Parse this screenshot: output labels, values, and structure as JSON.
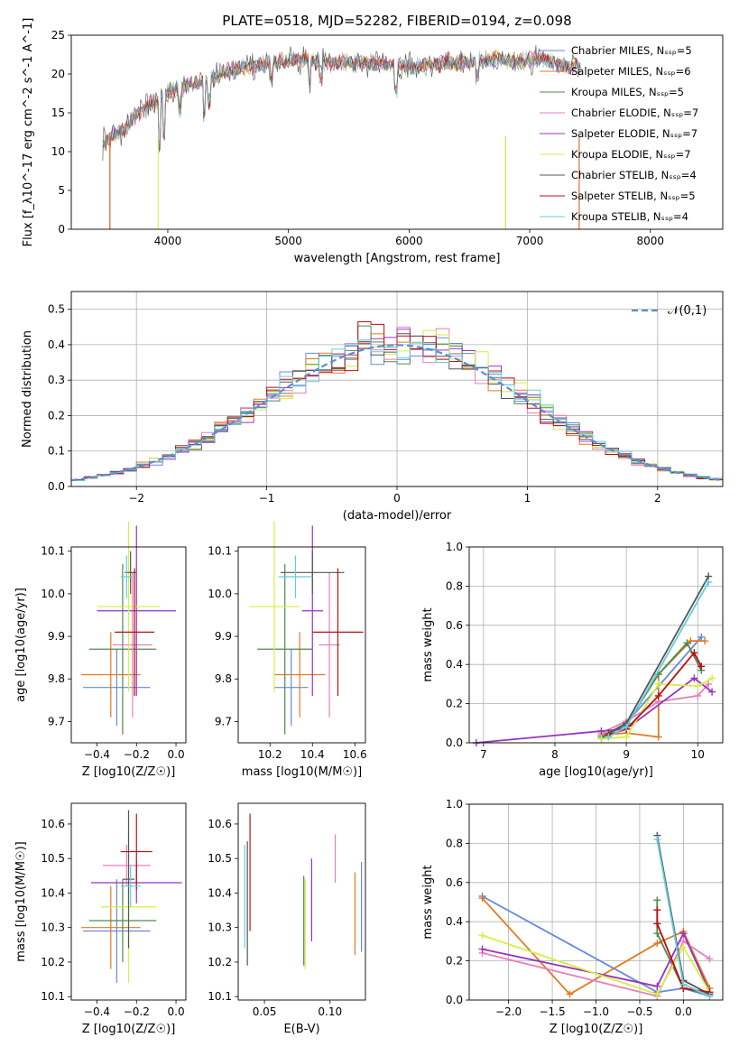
{
  "colors": {
    "blue": "#6688dd",
    "orange": "#e07b22",
    "green": "#4e8a50",
    "pink": "#e67fbf",
    "purple": "#9933bb",
    "yellow": "#d6ee44",
    "gray": "#555555",
    "red": "#bb1111",
    "cyan": "#66ccdd"
  },
  "chart_data": [
    {
      "type": "line",
      "title": "PLATE=0518, MJD=52282, FIBERID=0194, z=0.098",
      "xlabel": "wavelength [Angstrom, rest frame]",
      "ylabel": "Flux [f_λ10^-17 erg cm^-2 s^-1 A^-1]",
      "xlim": [
        3200,
        8600
      ],
      "ylim": [
        0,
        25
      ],
      "xticks": [
        4000,
        5000,
        6000,
        7000,
        8000
      ],
      "yticks": [
        0,
        5,
        10,
        15,
        20,
        25
      ],
      "series": [
        {
          "name": "Chabrier MILES, N_SSP=5"
        },
        {
          "name": "Salpeter MILES, N_SSP=6"
        },
        {
          "name": "Kroupa MILES, N_SSP=5"
        },
        {
          "name": "Chabrier ELODIE, N_SSP=7"
        },
        {
          "name": "Salpeter ELODIE, N_SSP=7"
        },
        {
          "name": "Kroupa ELODIE, N_SSP=7"
        },
        {
          "name": "Chabrier STELIB, N_SSP=4"
        },
        {
          "name": "Salpeter STELIB, N_SSP=5"
        },
        {
          "name": "Kroupa STELIB, N_SSP=4"
        }
      ],
      "legend": "right",
      "spectrum_envelope": {
        "x": [
          3450,
          3550,
          3650,
          3750,
          3850,
          3950,
          4050,
          4150,
          4300,
          4500,
          4700,
          4900,
          5100,
          5300,
          5500,
          5700,
          5900,
          6100,
          6300,
          6500,
          6700,
          6900,
          7100,
          7300,
          7420
        ],
        "y": [
          11,
          12,
          13,
          15,
          16,
          17,
          18,
          18.5,
          19,
          20.5,
          21,
          21.5,
          22,
          21.5,
          21.5,
          21.5,
          21,
          21,
          21.5,
          21.5,
          22,
          21.5,
          22,
          21,
          21
        ]
      }
    },
    {
      "type": "histogram",
      "xlabel": "(data-model)/error",
      "ylabel": "Normed distribution",
      "xlim": [
        -2.5,
        2.5
      ],
      "ylim": [
        0,
        0.55
      ],
      "xticks": [
        -2,
        -1,
        0,
        1,
        2
      ],
      "yticks": [
        0.0,
        0.1,
        0.2,
        0.3,
        0.4,
        0.5
      ],
      "legend": "top-right",
      "reference_label": "𝒩(0,1)",
      "bin_width": 0.1
    },
    {
      "type": "scatter",
      "xlabel": "Z [log10(Z/Z☉)]",
      "ylabel": "age [log10(age/yr)]",
      "xlim": [
        -0.53,
        0.05
      ],
      "ylim": [
        9.65,
        10.11
      ],
      "xticks": [
        -0.4,
        -0.2,
        0.0
      ],
      "yticks": [
        9.7,
        9.8,
        9.9,
        10.0,
        10.1
      ],
      "points": [
        {
          "color": "blue",
          "x": -0.3,
          "xe": 0.17,
          "y": 9.78,
          "ye": 0.09
        },
        {
          "color": "orange",
          "x": -0.33,
          "xe": 0.15,
          "y": 9.81,
          "ye": 0.1
        },
        {
          "color": "green",
          "x": -0.27,
          "xe": 0.17,
          "y": 9.87,
          "ye": 0.2
        },
        {
          "color": "pink",
          "x": -0.22,
          "xe": 0.1,
          "y": 9.88,
          "ye": 0.17
        },
        {
          "color": "purple",
          "x": -0.2,
          "xe": 0.2,
          "y": 9.96,
          "ye": 0.2
        },
        {
          "color": "yellow",
          "x": -0.24,
          "xe": 0.16,
          "y": 9.97,
          "ye": 0.2
        },
        {
          "color": "gray",
          "x": -0.23,
          "xe": 0.03,
          "y": 10.05,
          "ye": 0.05
        },
        {
          "color": "red",
          "x": -0.21,
          "xe": 0.1,
          "y": 9.91,
          "ye": 0.15
        },
        {
          "color": "cyan",
          "x": -0.25,
          "xe": 0.03,
          "y": 10.04,
          "ye": 0.05
        }
      ]
    },
    {
      "type": "scatter",
      "xlabel": "mass [log10(M/M☉)]",
      "ylabel": "",
      "xlim": [
        10.05,
        10.65
      ],
      "ylim": [
        9.65,
        10.11
      ],
      "xticks": [
        10.2,
        10.4,
        10.6
      ],
      "yticks": [
        9.7,
        9.8,
        9.9,
        10.0,
        10.1
      ],
      "points": [
        {
          "color": "blue",
          "x": 10.3,
          "xe": 0.08,
          "y": 9.78,
          "ye": 0.09
        },
        {
          "color": "orange",
          "x": 10.34,
          "xe": 0.12,
          "y": 9.81,
          "ye": 0.1
        },
        {
          "color": "green",
          "x": 10.27,
          "xe": 0.13,
          "y": 9.87,
          "ye": 0.2
        },
        {
          "color": "pink",
          "x": 10.48,
          "xe": 0.05,
          "y": 9.88,
          "ye": 0.17
        },
        {
          "color": "purple",
          "x": 10.4,
          "xe": 0.05,
          "y": 9.96,
          "ye": 0.2
        },
        {
          "color": "yellow",
          "x": 10.22,
          "xe": 0.12,
          "y": 9.97,
          "ye": 0.2
        },
        {
          "color": "gray",
          "x": 10.4,
          "xe": 0.15,
          "y": 10.05,
          "ye": 0.05
        },
        {
          "color": "red",
          "x": 10.52,
          "xe": 0.12,
          "y": 9.91,
          "ye": 0.15
        },
        {
          "color": "cyan",
          "x": 10.32,
          "xe": 0.08,
          "y": 10.04,
          "ye": 0.05
        }
      ]
    },
    {
      "type": "line",
      "xlabel": "age [log10(age/yr)]",
      "ylabel": "mass weight",
      "xlim": [
        6.8,
        10.35
      ],
      "ylim": [
        0,
        1
      ],
      "xticks": [
        7,
        8,
        9,
        10
      ],
      "yticks": [
        0.0,
        0.2,
        0.4,
        0.6,
        0.8,
        1.0
      ],
      "series": [
        {
          "color": "blue",
          "x": [
            8.65,
            9.0,
            10.05
          ],
          "y": [
            0.02,
            0.1,
            0.54
          ]
        },
        {
          "color": "orange",
          "x": [
            8.65,
            9.0,
            9.45,
            9.45,
            9.9,
            10.1
          ],
          "y": [
            0.04,
            0.05,
            0.03,
            0.35,
            0.52,
            0.52
          ]
        },
        {
          "color": "green",
          "x": [
            8.65,
            9.0,
            9.45,
            9.85,
            10.05
          ],
          "y": [
            0.03,
            0.09,
            0.35,
            0.51,
            0.37
          ]
        },
        {
          "color": "pink",
          "x": [
            8.65,
            9.0,
            9.45,
            10.0,
            10.15
          ],
          "y": [
            0.05,
            0.11,
            0.21,
            0.24,
            0.3
          ]
        },
        {
          "color": "purple",
          "x": [
            6.9,
            8.65,
            9.0,
            9.95,
            10.2
          ],
          "y": [
            0.0,
            0.06,
            0.07,
            0.33,
            0.26
          ]
        },
        {
          "color": "yellow",
          "x": [
            8.65,
            9.0,
            9.45,
            10.0,
            10.2
          ],
          "y": [
            0.02,
            0.03,
            0.3,
            0.29,
            0.33
          ]
        },
        {
          "color": "gray",
          "x": [
            8.75,
            9.0,
            10.15
          ],
          "y": [
            0.05,
            0.1,
            0.85
          ]
        },
        {
          "color": "red",
          "x": [
            8.75,
            9.0,
            9.45,
            9.95,
            10.05
          ],
          "y": [
            0.04,
            0.07,
            0.24,
            0.46,
            0.39
          ]
        },
        {
          "color": "cyan",
          "x": [
            8.75,
            9.0,
            10.15
          ],
          "y": [
            0.03,
            0.08,
            0.82
          ]
        }
      ]
    },
    {
      "type": "scatter",
      "xlabel": "Z [log10(Z/Z☉)]",
      "ylabel": "mass [log10(M/M☉)]",
      "xlim": [
        -0.53,
        0.05
      ],
      "ylim": [
        10.09,
        10.66
      ],
      "xticks": [
        -0.4,
        -0.2,
        0.0
      ],
      "yticks": [
        10.1,
        10.2,
        10.3,
        10.4,
        10.5,
        10.6
      ],
      "points": [
        {
          "color": "blue",
          "x": -0.3,
          "xe": 0.17,
          "y": 10.29,
          "ye": 0.15
        },
        {
          "color": "orange",
          "x": -0.33,
          "xe": 0.15,
          "y": 10.3,
          "ye": 0.12
        },
        {
          "color": "green",
          "x": -0.27,
          "xe": 0.17,
          "y": 10.32,
          "ye": 0.12
        },
        {
          "color": "pink",
          "x": -0.25,
          "xe": 0.12,
          "y": 10.48,
          "ye": 0.06
        },
        {
          "color": "purple",
          "x": -0.2,
          "xe": 0.23,
          "y": 10.43,
          "ye": 0.06
        },
        {
          "color": "yellow",
          "x": -0.24,
          "xe": 0.14,
          "y": 10.36,
          "ye": 0.22
        },
        {
          "color": "gray",
          "x": -0.24,
          "xe": 0.03,
          "y": 10.44,
          "ye": 0.2
        },
        {
          "color": "red",
          "x": -0.2,
          "xe": 0.08,
          "y": 10.52,
          "ye": 0.11
        },
        {
          "color": "cyan",
          "x": -0.23,
          "xe": 0.05,
          "y": 10.42,
          "ye": 0.06
        }
      ]
    },
    {
      "type": "scatter",
      "xlabel": "E(B-V)",
      "ylabel": "",
      "xlim": [
        0.03,
        0.127
      ],
      "ylim": [
        10.09,
        10.66
      ],
      "xticks": [
        0.05,
        0.1
      ],
      "yticks": [
        10.1,
        10.2,
        10.3,
        10.4,
        10.5,
        10.6
      ],
      "points": [
        {
          "color": "blue",
          "x": 0.124,
          "ye": 0.13,
          "y": 10.36
        },
        {
          "color": "orange",
          "x": 0.119,
          "ye": 0.12,
          "y": 10.34
        },
        {
          "color": "green",
          "x": 0.08,
          "ye": 0.13,
          "y": 10.32
        },
        {
          "color": "pink",
          "x": 0.104,
          "ye": 0.07,
          "y": 10.5
        },
        {
          "color": "purple",
          "x": 0.086,
          "ye": 0.12,
          "y": 10.38
        },
        {
          "color": "yellow",
          "x": 0.081,
          "ye": 0.13,
          "y": 10.31
        },
        {
          "color": "gray",
          "x": 0.037,
          "ye": 0.18,
          "y": 10.37
        },
        {
          "color": "red",
          "x": 0.039,
          "ye": 0.17,
          "y": 10.46
        },
        {
          "color": "cyan",
          "x": 0.035,
          "ye": 0.15,
          "y": 10.39
        }
      ]
    },
    {
      "type": "line",
      "xlabel": "Z [log10(Z/Z☉)]",
      "ylabel": "mass weight",
      "xlim": [
        -2.45,
        0.45
      ],
      "ylim": [
        0,
        1
      ],
      "xticks": [
        -2.0,
        -1.5,
        -1.0,
        -0.5,
        0.0
      ],
      "yticks": [
        0.0,
        0.2,
        0.4,
        0.6,
        0.8,
        1.0
      ],
      "series": [
        {
          "color": "blue",
          "x": [
            -2.3,
            -0.3,
            0.0,
            0.3
          ],
          "y": [
            0.53,
            0.04,
            0.06,
            0.02
          ]
        },
        {
          "color": "orange",
          "x": [
            -2.3,
            -1.3,
            -0.3,
            0.0,
            0.3
          ],
          "y": [
            0.52,
            0.03,
            0.29,
            0.35,
            0.06
          ]
        },
        {
          "color": "green",
          "x": [
            -0.3,
            -0.3,
            0.0,
            0.3
          ],
          "y": [
            0.51,
            0.34,
            0.06,
            0.03
          ]
        },
        {
          "color": "pink",
          "x": [
            -2.3,
            -0.3,
            0.0,
            0.3
          ],
          "y": [
            0.24,
            0.02,
            0.3,
            0.21
          ]
        },
        {
          "color": "purple",
          "x": [
            -2.3,
            -0.3,
            0.0,
            0.3
          ],
          "y": [
            0.26,
            0.07,
            0.34,
            0.04
          ]
        },
        {
          "color": "yellow",
          "x": [
            -2.3,
            -0.3,
            0.0,
            0.3
          ],
          "y": [
            0.33,
            0.03,
            0.27,
            0.04
          ]
        },
        {
          "color": "gray",
          "x": [
            -0.3,
            0.0,
            0.3
          ],
          "y": [
            0.84,
            0.1,
            0.03
          ]
        },
        {
          "color": "red",
          "x": [
            -0.3,
            -0.3,
            0.0,
            0.3
          ],
          "y": [
            0.46,
            0.39,
            0.06,
            0.04
          ]
        },
        {
          "color": "cyan",
          "x": [
            -0.3,
            0.0,
            0.3
          ],
          "y": [
            0.82,
            0.08,
            0.02
          ]
        }
      ]
    }
  ]
}
